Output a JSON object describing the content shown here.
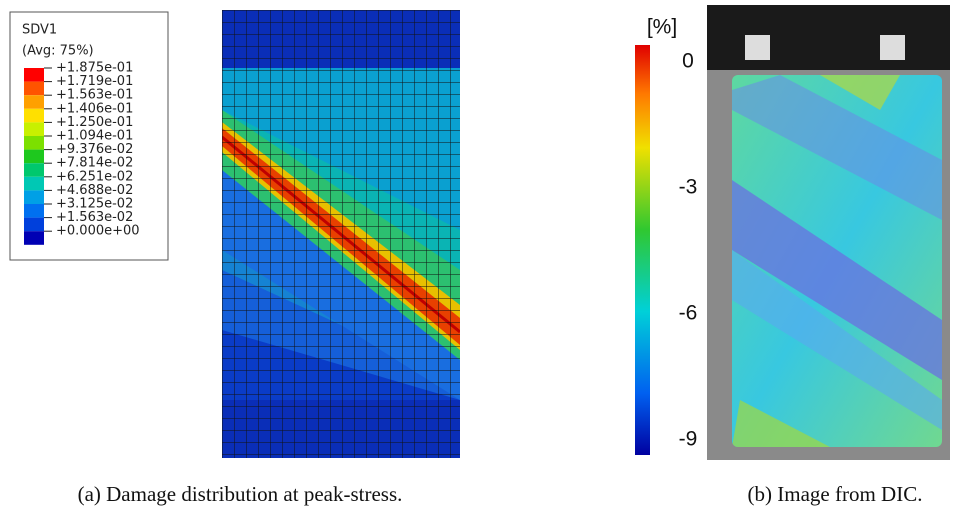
{
  "figure_a": {
    "legend": {
      "title": "SDV1",
      "subtitle": "(Avg: 75%)",
      "labels": [
        "+1.875e-01",
        "+1.719e-01",
        "+1.563e-01",
        "+1.406e-01",
        "+1.250e-01",
        "+1.094e-01",
        "+9.376e-02",
        "+7.814e-02",
        "+6.251e-02",
        "+4.688e-02",
        "+3.125e-02",
        "+1.563e-02",
        "+0.000e+00"
      ],
      "colors": [
        "#ff0000",
        "#ff5400",
        "#ffa000",
        "#ffe000",
        "#c8f000",
        "#7ce000",
        "#1ec81e",
        "#00c86e",
        "#00c8b4",
        "#00a0e6",
        "#0070f0",
        "#0040dc",
        "#0000b4"
      ]
    },
    "caption": "(a) Damage distribution at peak-stress."
  },
  "figure_b": {
    "colorbar": {
      "unit": "[%]",
      "ticks": [
        0,
        -3,
        -6,
        -9
      ]
    },
    "caption": "(b) Image from DIC."
  }
}
